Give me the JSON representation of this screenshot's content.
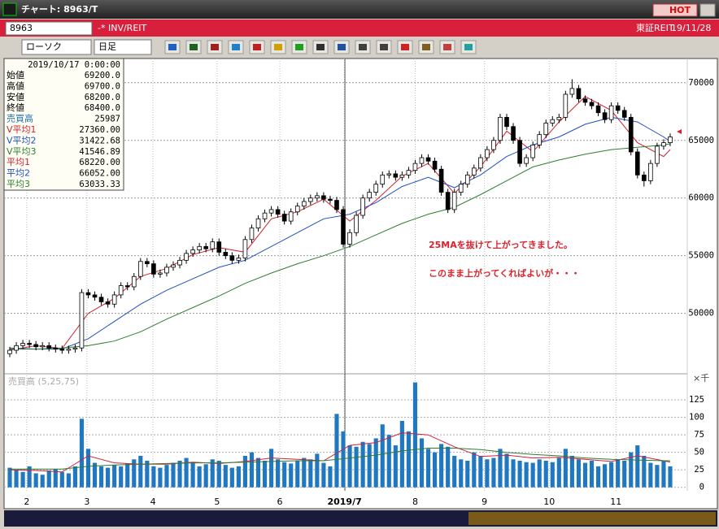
{
  "window": {
    "title": "チャート: 8963/T",
    "hot": "HOT",
    "code": "8963",
    "name": "-* INV/REIT",
    "market": "東証REIT",
    "date": "19/11/28"
  },
  "toolbar": {
    "chart_style": "ローソク",
    "period": "日足"
  },
  "info_panel": {
    "datetime": "2019/10/17  0:00:00",
    "rows": [
      [
        "始値",
        "69200.0"
      ],
      [
        "高値",
        "69700.0"
      ],
      [
        "安値",
        "68200.0"
      ],
      [
        "終値",
        "68400.0"
      ],
      [
        "売買高",
        "25987"
      ],
      [
        "V平均1",
        "27360.00"
      ],
      [
        "V平均2",
        "31422.68"
      ],
      [
        "V平均3",
        "41546.89"
      ],
      [
        "平均1",
        "68220.00"
      ],
      [
        "平均2",
        "66052.00"
      ],
      [
        "平均3",
        "63033.33"
      ]
    ],
    "row_colors": [
      "#000000",
      "#000000",
      "#000000",
      "#000000",
      "#1a6fb0",
      "#d02030",
      "#2050c0",
      "#2e7d32",
      "#d02030",
      "#2050c0",
      "#2e7d32"
    ]
  },
  "chart_data": [
    {
      "type": "candlestick",
      "up_color": "#ffffff",
      "down_color": "#000000",
      "ylim": [
        44900,
        72100
      ],
      "yticks": [
        50000,
        55000,
        60000,
        65000,
        70000
      ],
      "grid": true,
      "annotations": [
        "25MAを抜けて上がってきました。",
        "このまま上がってくればよいが・・・"
      ],
      "annotation_color": "#e0202a",
      "open": [
        46500,
        46800,
        47200,
        47400,
        47300,
        47100,
        47200,
        47000,
        46900,
        46800,
        46900,
        47000,
        51800,
        51600,
        51400,
        51000,
        50800,
        51600,
        52400,
        52300,
        53200,
        54500,
        54300,
        53400,
        53500,
        54000,
        54200,
        54600,
        55200,
        55500,
        55800,
        55600,
        56200,
        55300,
        55000,
        54600,
        54800,
        56400,
        57400,
        58200,
        58700,
        59000,
        58600,
        58000,
        58800,
        59300,
        59700,
        60000,
        60200,
        59900,
        59800,
        59000,
        56000,
        57000,
        58500,
        60000,
        60500,
        61200,
        62000,
        62100,
        61800,
        62000,
        62400,
        63000,
        63500,
        63200,
        62500,
        60500,
        59000,
        60500,
        61200,
        62000,
        62600,
        63500,
        64200,
        65000,
        67000,
        66200,
        65000,
        63000,
        63500,
        64600,
        65500,
        66500,
        66800,
        67000,
        69000,
        69500,
        68600,
        68300,
        68000,
        67400,
        66800,
        68000,
        67600,
        67000,
        64000,
        62000,
        61500,
        63000,
        64500,
        64800
      ],
      "high": [
        47100,
        47500,
        47700,
        47700,
        47600,
        47500,
        47500,
        47300,
        47200,
        47200,
        47300,
        52100,
        52100,
        51900,
        51700,
        51300,
        51900,
        52700,
        52700,
        53500,
        54800,
        54800,
        54600,
        53800,
        54300,
        54500,
        54900,
        55500,
        55800,
        56100,
        56100,
        56500,
        56500,
        55600,
        55300,
        55100,
        56700,
        57700,
        58500,
        59000,
        59300,
        59300,
        58900,
        59100,
        59600,
        60000,
        60300,
        60500,
        60500,
        60200,
        60100,
        59300,
        57300,
        58800,
        60300,
        60800,
        61500,
        62300,
        62400,
        62400,
        62300,
        62700,
        63300,
        63800,
        63800,
        63500,
        62800,
        60800,
        60800,
        61500,
        62300,
        62900,
        63800,
        64500,
        65300,
        67300,
        67300,
        66500,
        65300,
        63800,
        64900,
        65800,
        66800,
        67100,
        67300,
        69300,
        70300,
        69800,
        68900,
        68600,
        68300,
        67700,
        68300,
        68300,
        67900,
        67300,
        64300,
        62300,
        63300,
        64800,
        65100,
        65600
      ],
      "low": [
        46200,
        46500,
        46900,
        47000,
        46800,
        46800,
        46700,
        46600,
        46500,
        46500,
        46600,
        46700,
        51300,
        51100,
        50700,
        50500,
        50500,
        51300,
        52000,
        52000,
        52900,
        54000,
        53100,
        53100,
        53200,
        53700,
        53900,
        54300,
        54900,
        55200,
        55300,
        55300,
        55000,
        54700,
        54300,
        54300,
        54500,
        56100,
        57100,
        57900,
        58400,
        58300,
        57700,
        57700,
        58500,
        59000,
        59400,
        59700,
        59600,
        59500,
        58700,
        55700,
        55700,
        56700,
        58200,
        59700,
        60200,
        60900,
        61700,
        61500,
        61500,
        61700,
        62100,
        62700,
        62900,
        62200,
        60200,
        58700,
        58700,
        60200,
        60900,
        61700,
        62300,
        63200,
        63900,
        64700,
        65900,
        64700,
        62700,
        62700,
        63200,
        64300,
        65200,
        66200,
        66500,
        66700,
        68700,
        68300,
        68000,
        67700,
        67100,
        66500,
        66500,
        67300,
        66700,
        63700,
        61700,
        61000,
        61200,
        62700,
        64200,
        64500
      ],
      "close": [
        46800,
        47200,
        47400,
        47300,
        47100,
        47200,
        47000,
        46900,
        46800,
        46900,
        47000,
        51800,
        51600,
        51400,
        51000,
        50800,
        51600,
        52400,
        52300,
        53200,
        54500,
        54300,
        53400,
        53500,
        54000,
        54200,
        54600,
        55200,
        55500,
        55800,
        55600,
        56200,
        55300,
        55000,
        54600,
        54800,
        56400,
        57400,
        58200,
        58700,
        59000,
        58600,
        58000,
        58800,
        59300,
        59700,
        60000,
        60200,
        59900,
        59800,
        59000,
        56000,
        57000,
        58500,
        60000,
        60500,
        61200,
        62000,
        62100,
        61800,
        62000,
        62400,
        63000,
        63500,
        63200,
        62500,
        60500,
        59000,
        60500,
        61200,
        62000,
        62600,
        63500,
        64200,
        65000,
        67000,
        66200,
        65000,
        63000,
        63500,
        64600,
        65500,
        66500,
        66800,
        67000,
        69000,
        69500,
        68600,
        68300,
        68000,
        67400,
        66800,
        68000,
        67600,
        67000,
        64000,
        62000,
        61500,
        63000,
        64500,
        64800,
        65300
      ],
      "series": [
        {
          "color": "#d02030",
          "x": [
            0,
            4,
            8,
            12,
            16,
            20,
            24,
            28,
            32,
            36,
            40,
            44,
            48,
            52,
            56,
            60,
            64,
            68,
            72,
            76,
            80,
            84,
            88,
            92,
            96,
            100,
            101
          ],
          "values": [
            46800,
            47200,
            46950,
            50000,
            51300,
            53200,
            53900,
            55100,
            55700,
            55300,
            58200,
            58800,
            59900,
            58000,
            59800,
            61900,
            63000,
            60400,
            62700,
            65800,
            64000,
            66600,
            68800,
            67600,
            64800,
            63600,
            64200
          ]
        },
        {
          "color": "#2050c0",
          "x": [
            0,
            4,
            8,
            12,
            16,
            20,
            24,
            28,
            32,
            36,
            40,
            44,
            48,
            52,
            56,
            60,
            64,
            68,
            72,
            76,
            80,
            84,
            88,
            92,
            96,
            100,
            101
          ],
          "values": [
            47000,
            46900,
            46900,
            47800,
            49300,
            50800,
            52000,
            53000,
            54000,
            54600,
            55800,
            57000,
            58200,
            58600,
            59600,
            61000,
            61800,
            60900,
            62000,
            63600,
            64600,
            65300,
            66400,
            67000,
            66600,
            65300,
            64900
          ]
        },
        {
          "color": "#2e7d32",
          "x": [
            0,
            4,
            8,
            12,
            16,
            20,
            24,
            28,
            32,
            36,
            40,
            44,
            48,
            52,
            56,
            60,
            64,
            68,
            72,
            76,
            80,
            84,
            88,
            92,
            96,
            100,
            101
          ],
          "values": [
            46900,
            46900,
            47000,
            47200,
            47600,
            48400,
            49500,
            50500,
            51500,
            52600,
            53500,
            54300,
            55000,
            55800,
            56800,
            57800,
            58600,
            59200,
            60300,
            61500,
            62700,
            63300,
            63800,
            64200,
            64400,
            64600,
            64700
          ]
        }
      ]
    },
    {
      "type": "bar",
      "legend": "売買高 (5,25,75)",
      "unit": "×千",
      "color": "#1f78c0",
      "ylim": [
        -5,
        160
      ],
      "yticks": [
        0,
        25,
        50,
        75,
        100,
        125
      ],
      "xlim": [
        0,
        102
      ],
      "xticks": [
        {
          "value": 2.6,
          "label": "2"
        },
        {
          "value": 11.8,
          "label": "3"
        },
        {
          "value": 21.9,
          "label": "4"
        },
        {
          "value": 31.7,
          "label": "5"
        },
        {
          "value": 41.3,
          "label": "6"
        },
        {
          "value": 51.2,
          "label": "2019/7"
        },
        {
          "value": 62,
          "label": "8"
        },
        {
          "value": 72.6,
          "label": "9"
        },
        {
          "value": 82.5,
          "label": "10"
        },
        {
          "value": 92.7,
          "label": "11"
        }
      ],
      "values": [
        28,
        25,
        22,
        30,
        20,
        18,
        24,
        26,
        22,
        20,
        30,
        98,
        55,
        35,
        30,
        28,
        32,
        30,
        34,
        40,
        45,
        38,
        30,
        28,
        32,
        35,
        38,
        42,
        36,
        30,
        33,
        40,
        38,
        32,
        28,
        30,
        45,
        50,
        42,
        38,
        55,
        40,
        36,
        34,
        38,
        42,
        40,
        48,
        35,
        30,
        105,
        80,
        60,
        58,
        65,
        62,
        70,
        90,
        75,
        60,
        95,
        80,
        150,
        70,
        55,
        50,
        62,
        58,
        45,
        40,
        38,
        50,
        45,
        40,
        42,
        55,
        48,
        40,
        38,
        36,
        35,
        40,
        38,
        36,
        42,
        55,
        45,
        40,
        35,
        38,
        30,
        33,
        36,
        40,
        38,
        50,
        60,
        45,
        35,
        32,
        38,
        30
      ],
      "series": [
        {
          "color": "#d02040",
          "x": [
            0,
            4,
            8,
            12,
            16,
            20,
            24,
            28,
            32,
            36,
            40,
            44,
            48,
            52,
            56,
            60,
            64,
            68,
            72,
            76,
            80,
            84,
            88,
            92,
            96,
            100,
            101
          ],
          "values": [
            25,
            24,
            22,
            45,
            35,
            33,
            33,
            36,
            34,
            37,
            42,
            40,
            38,
            60,
            64,
            78,
            75,
            58,
            44,
            46,
            42,
            43,
            40,
            37,
            45,
            38,
            36
          ]
        },
        {
          "color": "#2e7d32",
          "x": [
            0,
            4,
            8,
            12,
            16,
            20,
            24,
            28,
            32,
            36,
            40,
            44,
            48,
            52,
            56,
            60,
            64,
            68,
            72,
            76,
            80,
            84,
            88,
            92,
            96,
            100,
            101
          ],
          "values": [
            26,
            26,
            26,
            30,
            32,
            33,
            34,
            35,
            35,
            36,
            37,
            38,
            38,
            42,
            46,
            52,
            56,
            56,
            54,
            50,
            47,
            45,
            42,
            40,
            39,
            38,
            38
          ]
        }
      ]
    }
  ]
}
